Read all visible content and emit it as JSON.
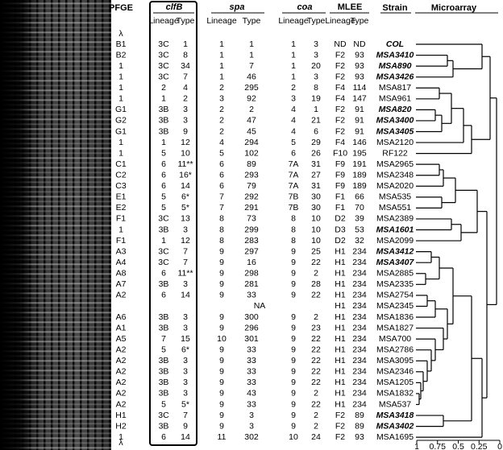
{
  "headers": {
    "pfge": "PFGE",
    "clfb": "clfB",
    "spa": "spa",
    "coa": "coa",
    "mlee": "MLEE",
    "strain": "Strain",
    "microarray": "Microarray",
    "lineage": "Lineage",
    "type": "Type"
  },
  "lambda": "λ",
  "rows": [
    {
      "pfge": "B1",
      "clfb": [
        "3C",
        "1"
      ],
      "spa": [
        "1",
        "1"
      ],
      "coa": [
        "1",
        "3"
      ],
      "mlee": [
        "ND",
        "ND"
      ],
      "strain": "COL",
      "emphasis": true
    },
    {
      "pfge": "B2",
      "clfb": [
        "3C",
        "8"
      ],
      "spa": [
        "1",
        "1"
      ],
      "coa": [
        "1",
        "3"
      ],
      "mlee": [
        "F2",
        "93"
      ],
      "strain": "MSA3410",
      "emphasis": true
    },
    {
      "pfge": "1",
      "clfb": [
        "3C",
        "34"
      ],
      "spa": [
        "1",
        "7"
      ],
      "coa": [
        "1",
        "20"
      ],
      "mlee": [
        "F2",
        "93"
      ],
      "strain": "MSA890",
      "emphasis": true
    },
    {
      "pfge": "1",
      "clfb": [
        "3C",
        "7"
      ],
      "spa": [
        "1",
        "46"
      ],
      "coa": [
        "1",
        "3"
      ],
      "mlee": [
        "F2",
        "93"
      ],
      "strain": "MSA3426",
      "emphasis": true
    },
    {
      "pfge": "1",
      "clfb": [
        "2",
        "4"
      ],
      "spa": [
        "2",
        "295"
      ],
      "coa": [
        "2",
        "8"
      ],
      "mlee": [
        "F4",
        "114"
      ],
      "strain": "MSA817"
    },
    {
      "pfge": "1",
      "clfb": [
        "1",
        "2"
      ],
      "spa": [
        "3",
        "92"
      ],
      "coa": [
        "3",
        "19"
      ],
      "mlee": [
        "F4",
        "147"
      ],
      "strain": "MSA961"
    },
    {
      "pfge": "G1",
      "clfb": [
        "3B",
        "3"
      ],
      "spa": [
        "2",
        "2"
      ],
      "coa": [
        "4",
        "1"
      ],
      "mlee": [
        "F2",
        "91"
      ],
      "strain": "MSA820",
      "emphasis": true
    },
    {
      "pfge": "G2",
      "clfb": [
        "3B",
        "3"
      ],
      "spa": [
        "2",
        "47"
      ],
      "coa": [
        "4",
        "21"
      ],
      "mlee": [
        "F2",
        "91"
      ],
      "strain": "MSA3400",
      "emphasis": true
    },
    {
      "pfge": "G1",
      "clfb": [
        "3B",
        "9"
      ],
      "spa": [
        "2",
        "45"
      ],
      "coa": [
        "4",
        "6"
      ],
      "mlee": [
        "F2",
        "91"
      ],
      "strain": "MSA3405",
      "emphasis": true
    },
    {
      "pfge": "1",
      "clfb": [
        "1",
        "12"
      ],
      "spa": [
        "4",
        "294"
      ],
      "coa": [
        "5",
        "29"
      ],
      "mlee": [
        "F4",
        "146"
      ],
      "strain": "MSA2120"
    },
    {
      "pfge": "1",
      "clfb": [
        "5",
        "10"
      ],
      "spa": [
        "5",
        "102"
      ],
      "coa": [
        "6",
        "26"
      ],
      "mlee": [
        "F10",
        "195"
      ],
      "strain": "RF122"
    },
    {
      "pfge": "C1",
      "clfb": [
        "6",
        "11**"
      ],
      "spa": [
        "6",
        "89"
      ],
      "coa": [
        "7A",
        "31"
      ],
      "mlee": [
        "F9",
        "191"
      ],
      "strain": "MSA2965"
    },
    {
      "pfge": "C2",
      "clfb": [
        "6",
        "16*"
      ],
      "spa": [
        "6",
        "293"
      ],
      "coa": [
        "7A",
        "27"
      ],
      "mlee": [
        "F9",
        "189"
      ],
      "strain": "MSA2348"
    },
    {
      "pfge": "C3",
      "clfb": [
        "6",
        "14"
      ],
      "spa": [
        "6",
        "79"
      ],
      "coa": [
        "7A",
        "31"
      ],
      "mlee": [
        "F9",
        "189"
      ],
      "strain": "MSA2020"
    },
    {
      "pfge": "E1",
      "clfb": [
        "5",
        "6*"
      ],
      "spa": [
        "7",
        "292"
      ],
      "coa": [
        "7B",
        "30"
      ],
      "mlee": [
        "F1",
        "66"
      ],
      "strain": "MSA535"
    },
    {
      "pfge": "E2",
      "clfb": [
        "5",
        "5*"
      ],
      "spa": [
        "7",
        "291"
      ],
      "coa": [
        "7B",
        "30"
      ],
      "mlee": [
        "F1",
        "70"
      ],
      "strain": "MSA551"
    },
    {
      "pfge": "F1",
      "clfb": [
        "3C",
        "13"
      ],
      "spa": [
        "8",
        "73"
      ],
      "coa": [
        "8",
        "10"
      ],
      "mlee": [
        "D2",
        "39"
      ],
      "strain": "MSA2389"
    },
    {
      "pfge": "1",
      "clfb": [
        "3B",
        "3"
      ],
      "spa": [
        "8",
        "299"
      ],
      "coa": [
        "8",
        "10"
      ],
      "mlee": [
        "D3",
        "53"
      ],
      "strain": "MSA1601",
      "emphasis": true
    },
    {
      "pfge": "F1",
      "clfb": [
        "1",
        "12"
      ],
      "spa": [
        "8",
        "283"
      ],
      "coa": [
        "8",
        "10"
      ],
      "mlee": [
        "D2",
        "32"
      ],
      "strain": "MSA2099"
    },
    {
      "pfge": "A3",
      "clfb": [
        "3C",
        "7"
      ],
      "spa": [
        "9",
        "297"
      ],
      "coa": [
        "9",
        "25"
      ],
      "mlee": [
        "H1",
        "234"
      ],
      "strain": "MSA3412",
      "emphasis": true
    },
    {
      "pfge": "A4",
      "clfb": [
        "3C",
        "7"
      ],
      "spa": [
        "9",
        "16"
      ],
      "coa": [
        "9",
        "22"
      ],
      "mlee": [
        "H1",
        "234"
      ],
      "strain": "MSA3407",
      "emphasis": true
    },
    {
      "pfge": "A8",
      "clfb": [
        "6",
        "11**"
      ],
      "spa": [
        "9",
        "298"
      ],
      "coa": [
        "9",
        "2"
      ],
      "mlee": [
        "H1",
        "234"
      ],
      "strain": "MSA2885"
    },
    {
      "pfge": "A7",
      "clfb": [
        "3B",
        "3"
      ],
      "spa": [
        "9",
        "281"
      ],
      "coa": [
        "9",
        "28"
      ],
      "mlee": [
        "H1",
        "234"
      ],
      "strain": "MSA2335"
    },
    {
      "pfge": "A2",
      "clfb": [
        "6",
        "14"
      ],
      "spa": [
        "9",
        "33"
      ],
      "coa": [
        "9",
        "22"
      ],
      "mlee": [
        "H1",
        "234"
      ],
      "strain": "MSA2754"
    },
    {
      "spa": "NA",
      "mlee": [
        "H1",
        "234"
      ],
      "strain": "MSA2345"
    },
    {
      "pfge": "A6",
      "clfb": [
        "3B",
        "3"
      ],
      "spa": [
        "9",
        "300"
      ],
      "coa": [
        "9",
        "2"
      ],
      "mlee": [
        "H1",
        "234"
      ],
      "strain": "MSA1836"
    },
    {
      "pfge": "A1",
      "clfb": [
        "3B",
        "3"
      ],
      "spa": [
        "9",
        "296"
      ],
      "coa": [
        "9",
        "23"
      ],
      "mlee": [
        "H1",
        "234"
      ],
      "strain": "MSA1827"
    },
    {
      "pfge": "A5",
      "clfb": [
        "7",
        "15"
      ],
      "spa": [
        "10",
        "301"
      ],
      "coa": [
        "9",
        "22"
      ],
      "mlee": [
        "H1",
        "234"
      ],
      "strain": "MSA700"
    },
    {
      "pfge": "A2",
      "clfb": [
        "5",
        "6*"
      ],
      "spa": [
        "9",
        "33"
      ],
      "coa": [
        "9",
        "22"
      ],
      "mlee": [
        "H1",
        "234"
      ],
      "strain": "MSA2786"
    },
    {
      "pfge": "A2",
      "clfb": [
        "3B",
        "3"
      ],
      "spa": [
        "9",
        "33"
      ],
      "coa": [
        "9",
        "22"
      ],
      "mlee": [
        "H1",
        "234"
      ],
      "strain": "MSA3095"
    },
    {
      "pfge": "A2",
      "clfb": [
        "3B",
        "3"
      ],
      "spa": [
        "9",
        "33"
      ],
      "coa": [
        "9",
        "22"
      ],
      "mlee": [
        "H1",
        "234"
      ],
      "strain": "MSA2346"
    },
    {
      "pfge": "A2",
      "clfb": [
        "3B",
        "3"
      ],
      "spa": [
        "9",
        "33"
      ],
      "coa": [
        "9",
        "22"
      ],
      "mlee": [
        "H1",
        "234"
      ],
      "strain": "MSA1205"
    },
    {
      "pfge": "A2",
      "clfb": [
        "3B",
        "3"
      ],
      "spa": [
        "9",
        "43"
      ],
      "coa": [
        "9",
        "2"
      ],
      "mlee": [
        "H1",
        "234"
      ],
      "strain": "MSA1832"
    },
    {
      "pfge": "A2",
      "clfb": [
        "5",
        "5*"
      ],
      "spa": [
        "9",
        "33"
      ],
      "coa": [
        "9",
        "22"
      ],
      "mlee": [
        "H1",
        "234"
      ],
      "strain": "MSA537"
    },
    {
      "pfge": "H1",
      "clfb": [
        "3C",
        "7"
      ],
      "spa": [
        "9",
        "3"
      ],
      "coa": [
        "9",
        "2"
      ],
      "mlee": [
        "F2",
        "89"
      ],
      "strain": "MSA3418",
      "emphasis": true
    },
    {
      "pfge": "H2",
      "clfb": [
        "3B",
        "9"
      ],
      "spa": [
        "9",
        "3"
      ],
      "coa": [
        "9",
        "2"
      ],
      "mlee": [
        "F2",
        "89"
      ],
      "strain": "MSA3402",
      "emphasis": true
    },
    {
      "pfge": "1",
      "clfb": [
        "6",
        "14"
      ],
      "spa": [
        "11",
        "302"
      ],
      "coa": [
        "10",
        "24"
      ],
      "mlee": [
        "F2",
        "93"
      ],
      "strain": "MSA1695"
    }
  ],
  "microarray_axis": [
    1,
    0.75,
    0.5,
    0.25,
    0
  ]
}
